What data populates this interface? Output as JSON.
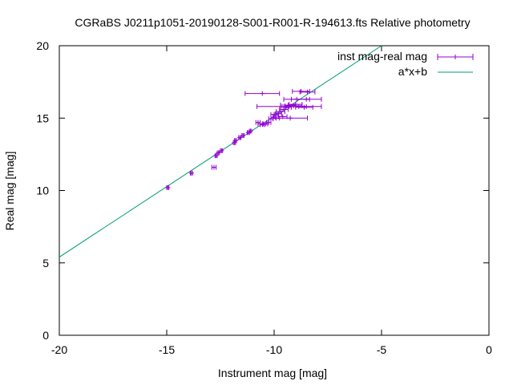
{
  "chart_data": {
    "type": "scatter",
    "title": "CGRaBS J0211p1051-20190128-S001-R001-R-194613.fts Relative photometry",
    "xlabel": "Instrument mag [mag]",
    "ylabel": "Real mag [mag]",
    "xlim": [
      -20,
      0
    ],
    "ylim": [
      0,
      20
    ],
    "xticks": [
      -20,
      -15,
      -10,
      -5,
      0
    ],
    "yticks": [
      0,
      5,
      10,
      15,
      20
    ],
    "grid": false,
    "legend_position": "top-right",
    "series": [
      {
        "name": "inst mag-real mag",
        "kind": "errorbar",
        "color": "#9400d3",
        "points": [
          {
            "x": -14.95,
            "y": 10.2,
            "xerr": 0.05
          },
          {
            "x": -13.85,
            "y": 11.2,
            "xerr": 0.05
          },
          {
            "x": -12.8,
            "y": 11.6,
            "xerr": 0.1
          },
          {
            "x": -12.7,
            "y": 12.4,
            "xerr": 0.05
          },
          {
            "x": -12.6,
            "y": 12.6,
            "xerr": 0.05
          },
          {
            "x": -12.45,
            "y": 12.75,
            "xerr": 0.05
          },
          {
            "x": -11.85,
            "y": 13.3,
            "xerr": 0.05
          },
          {
            "x": -11.8,
            "y": 13.45,
            "xerr": 0.05
          },
          {
            "x": -11.6,
            "y": 13.65,
            "xerr": 0.05
          },
          {
            "x": -11.45,
            "y": 13.8,
            "xerr": 0.05
          },
          {
            "x": -11.2,
            "y": 14.0,
            "xerr": 0.05
          },
          {
            "x": -11.1,
            "y": 14.1,
            "xerr": 0.05
          },
          {
            "x": -10.75,
            "y": 14.7,
            "xerr": 0.1
          },
          {
            "x": -10.65,
            "y": 14.6,
            "xerr": 0.1
          },
          {
            "x": -10.55,
            "y": 14.55,
            "xerr": 0.1
          },
          {
            "x": -10.4,
            "y": 14.6,
            "xerr": 0.1
          },
          {
            "x": -10.25,
            "y": 14.7,
            "xerr": 0.1
          },
          {
            "x": -10.15,
            "y": 14.95,
            "xerr": 0.1
          },
          {
            "x": -10.05,
            "y": 15.05,
            "xerr": 0.1
          },
          {
            "x": -10.0,
            "y": 15.25,
            "xerr": 0.15
          },
          {
            "x": -9.9,
            "y": 15.0,
            "xerr": 0.15
          },
          {
            "x": -9.8,
            "y": 15.3,
            "xerr": 0.15
          },
          {
            "x": -9.7,
            "y": 15.45,
            "xerr": 0.2
          },
          {
            "x": -9.6,
            "y": 15.1,
            "xerr": 0.2
          },
          {
            "x": -9.55,
            "y": 15.6,
            "xerr": 0.2
          },
          {
            "x": -9.45,
            "y": 15.75,
            "xerr": 0.25
          },
          {
            "x": -9.35,
            "y": 15.9,
            "xerr": 0.35
          },
          {
            "x": -9.25,
            "y": 15.0,
            "xerr": 0.8
          },
          {
            "x": -9.1,
            "y": 15.85,
            "xerr": 0.4
          },
          {
            "x": -9.0,
            "y": 15.95,
            "xerr": 0.3
          },
          {
            "x": -8.95,
            "y": 16.3,
            "xerr": 0.6
          },
          {
            "x": -8.85,
            "y": 15.8,
            "xerr": 0.35
          },
          {
            "x": -10.55,
            "y": 16.7,
            "xerr": 0.8
          },
          {
            "x": -9.3,
            "y": 15.8,
            "xerr": 1.5
          },
          {
            "x": -8.75,
            "y": 16.85,
            "xerr": 0.4
          },
          {
            "x": -8.5,
            "y": 16.3,
            "xerr": 0.7
          },
          {
            "x": -8.45,
            "y": 16.8,
            "xerr": 0.35
          },
          {
            "x": -8.6,
            "y": 15.75,
            "xerr": 0.4
          }
        ]
      },
      {
        "name": "a*x+b",
        "kind": "line",
        "color": "#009e73",
        "points": [
          {
            "x": -20,
            "y": 5.4
          },
          {
            "x": -5,
            "y": 20
          }
        ]
      }
    ]
  }
}
